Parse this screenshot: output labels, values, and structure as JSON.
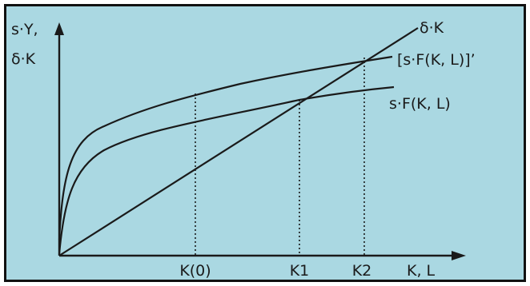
{
  "colors": {
    "background": "#aad8e2",
    "ink": "#1a1a1a"
  },
  "y_axis_label": {
    "line1": "s·Y,",
    "line2": "δ·K"
  },
  "x_axis_label": "K, L",
  "curves": {
    "depreciation": "δ·K",
    "shifted_savings": "[s·F(K, L)]’",
    "savings": "s·F(K, L)"
  },
  "x_ticks": {
    "k0": "K(0)",
    "k1": "K1",
    "k2": "K2"
  }
}
